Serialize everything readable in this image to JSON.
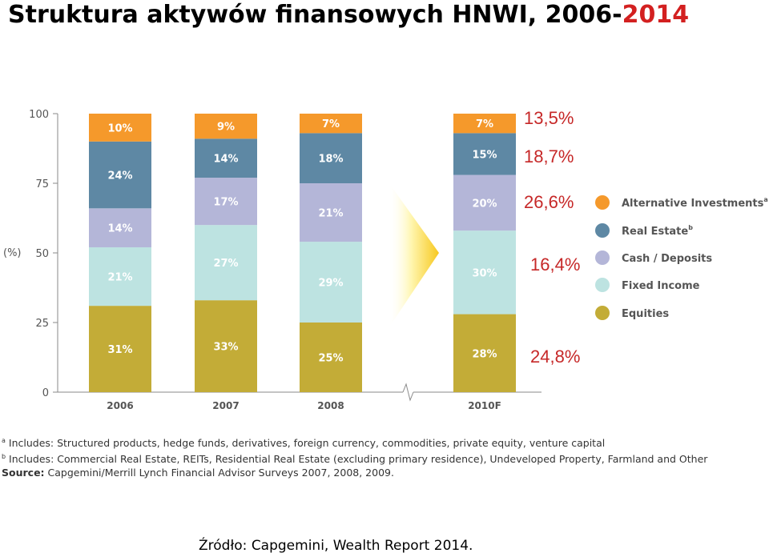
{
  "header": {
    "title_main": "Struktura aktywów finansowych HNWI, 2006-",
    "title_highlight": "2014"
  },
  "chart_data": {
    "type": "bar",
    "stacked": true,
    "ylabel": "(%)",
    "ylim": [
      0,
      100
    ],
    "yticks": [
      0,
      25,
      50,
      75,
      100
    ],
    "categories": [
      "2006",
      "2007",
      "2008",
      "2010F"
    ],
    "axis_break_between": [
      "2008",
      "2010F"
    ],
    "legend_position": "right",
    "series": [
      {
        "name": "Equities",
        "color": "#c3ac37",
        "values": [
          31,
          33,
          25,
          28
        ],
        "labels": [
          "31%",
          "33%",
          "25%",
          "28%"
        ]
      },
      {
        "name": "Fixed Income",
        "color": "#bde3e1",
        "values": [
          21,
          27,
          29,
          30
        ],
        "labels": [
          "21%",
          "27%",
          "29%",
          "30%"
        ]
      },
      {
        "name": "Cash / Deposits",
        "color": "#b4b6d8",
        "values": [
          14,
          17,
          21,
          20
        ],
        "labels": [
          "14%",
          "17%",
          "21%",
          "20%"
        ]
      },
      {
        "name": "Real Estate",
        "footnote_mark": "b",
        "color": "#5e88a4",
        "values": [
          24,
          14,
          18,
          15
        ],
        "labels": [
          "24%",
          "14%",
          "18%",
          "15%"
        ]
      },
      {
        "name": "Alternative Investments",
        "footnote_mark": "a",
        "color": "#f5992b",
        "values": [
          10,
          9,
          7,
          7
        ],
        "labels": [
          "10%",
          "9%",
          "7%",
          "7%"
        ]
      }
    ],
    "annotations_2014": {
      "color": "#c62828",
      "Alternative Investments": "13,5%",
      "Real Estate": "18,7%",
      "Cash / Deposits": "26,6%",
      "Fixed Income": "16,4%",
      "Equities": "24,8%"
    }
  },
  "footnotes": {
    "a_mark": "a",
    "a_text": " Includes: Structured products, hedge funds, derivatives, foreign currency, commodities, private equity, venture capital",
    "b_mark": "b",
    "b_text": " Includes: Commercial Real Estate, REITs, Residential Real Estate (excluding primary residence), Undeveloped Property, Farmland and Other",
    "source_label": "Source:",
    "source_text": "Capgemini/Merrill Lynch Financial Advisor Surveys 2007, 2008, 2009."
  },
  "footer": {
    "text": "Źródło: Capgemini, Wealth Report 2014."
  }
}
